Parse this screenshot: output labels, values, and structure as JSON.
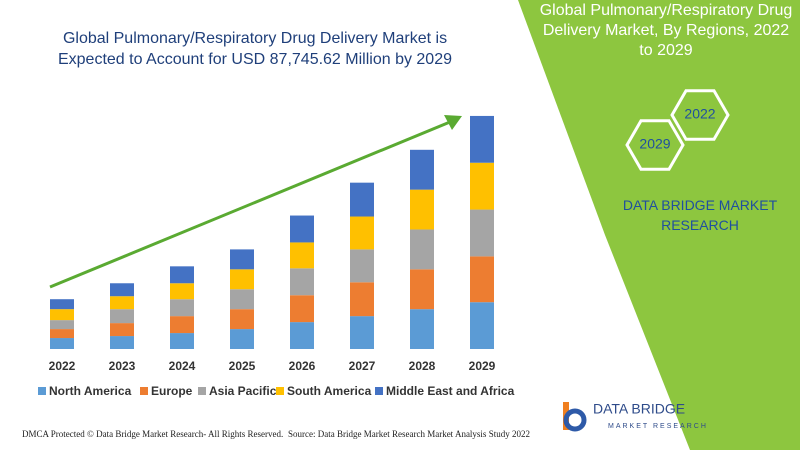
{
  "chart_data": {
    "type": "stacked_bar",
    "title": "Global Pulmonary/Respiratory Drug Delivery Market is Expected to Account for USD 87,745.62 Million by 2029",
    "categories": [
      "2022",
      "2023",
      "2024",
      "2025",
      "2026",
      "2027",
      "2028",
      "2029"
    ],
    "series": [
      {
        "name": "North America",
        "color": "#5b9bd5",
        "values": [
          11,
          13,
          16,
          20,
          27,
          33,
          40,
          47
        ]
      },
      {
        "name": "Europe",
        "color": "#ed7d31",
        "values": [
          9,
          13,
          17,
          20,
          27,
          34,
          40,
          46
        ]
      },
      {
        "name": "Asia Pacific",
        "color": "#a5a5a5",
        "values": [
          9,
          14,
          17,
          20,
          27,
          33,
          40,
          47
        ]
      },
      {
        "name": "South America",
        "color": "#ffc000",
        "values": [
          11,
          13,
          16,
          20,
          26,
          33,
          40,
          47
        ]
      },
      {
        "name": "Middle East and Africa",
        "color": "#4472c4",
        "values": [
          10,
          13,
          17,
          20,
          27,
          34,
          40,
          47
        ]
      }
    ],
    "ylim": [
      0,
      250
    ],
    "grid": false,
    "trend_arrow_color": "#5aaa32"
  },
  "side_panel": {
    "title": "Global Pulmonary/Respiratory Drug Delivery Market, By Regions, 2022 to 2029",
    "hexagons": [
      "2022",
      "2029"
    ],
    "brand": "DATA BRIDGE MARKET RESEARCH",
    "color": "#8dc63f"
  },
  "logo": {
    "name": "DATA BRIDGE",
    "tagline": "MARKET RESEARCH"
  },
  "footer": {
    "left": "DMCA Protected © Data Bridge Market Research- All Rights Reserved.",
    "right": "Source: Data Bridge Market Research Market Analysis Study 2022"
  }
}
